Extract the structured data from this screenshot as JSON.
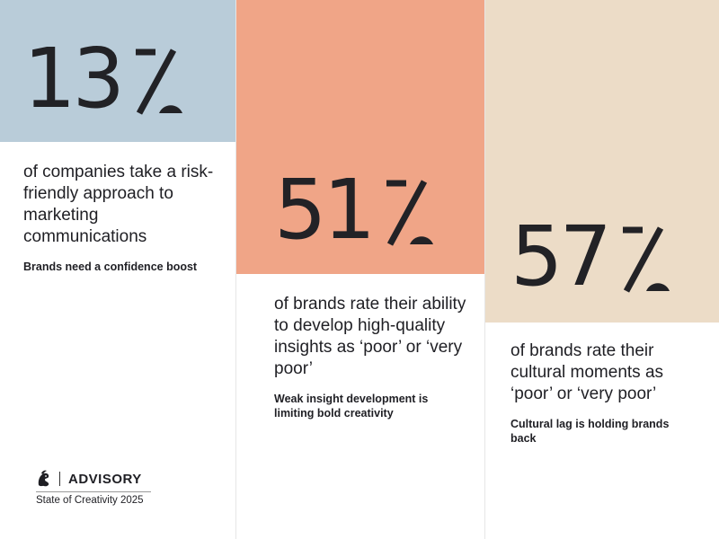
{
  "colors": {
    "blue_block": "#b9ccd9",
    "salmon_block": "#f0a587",
    "sand_block": "#ecdcc7",
    "text": "#1f1f24"
  },
  "stats": [
    {
      "number": "13",
      "description": "of companies take a risk-friendly approach to marketing communications",
      "note": "Brands need a confidence boost"
    },
    {
      "number": "51",
      "description": "of brands rate their ability to develop high-quality insights as ‘poor’ or ‘very poor’",
      "note": "Weak insight development is limiting bold creativity"
    },
    {
      "number": "57",
      "description": "of brands rate their cultural moments as ‘poor’ or ‘very poor’",
      "note": "Cultural lag is holding brands back"
    }
  ],
  "logo": {
    "icon": "lion-icon",
    "wordmark": "ADVISORY",
    "subtitle": "State of Creativity 2025"
  }
}
